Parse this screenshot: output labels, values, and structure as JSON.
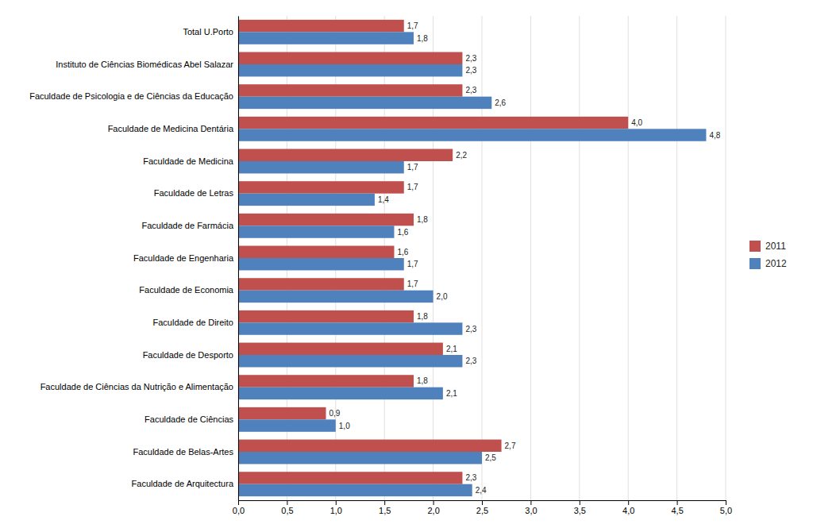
{
  "chart_data": {
    "type": "bar",
    "orientation": "horizontal",
    "categories": [
      "Faculdade de Arquitectura",
      "Faculdade de Belas-Artes",
      "Faculdade de Ciências",
      "Faculdade de Ciências da Nutrição e Alimentação",
      "Faculdade de Desporto",
      "Faculdade de Direito",
      "Faculdade de Economia",
      "Faculdade de Engenharia",
      "Faculdade de Farmácia",
      "Faculdade de Letras",
      "Faculdade de Medicina",
      "Faculdade de Medicina Dentária",
      "Faculdade de Psicologia e de Ciências da Educação",
      "Instituto de Ciências Biomédicas Abel Salazar",
      "Total U.Porto"
    ],
    "series": [
      {
        "name": "2011",
        "color": "#c0504d",
        "values": [
          2.3,
          2.7,
          0.9,
          1.8,
          2.1,
          1.8,
          1.7,
          1.6,
          1.8,
          1.7,
          2.2,
          4.0,
          2.3,
          2.3,
          1.7
        ],
        "value_labels": [
          "2,3",
          "2,7",
          "0,9",
          "1,8",
          "2,1",
          "1,8",
          "1,7",
          "1,6",
          "1,8",
          "1,7",
          "2,2",
          "4,0",
          "2,3",
          "2,3",
          "1,7"
        ]
      },
      {
        "name": "2012",
        "color": "#4f81bd",
        "values": [
          2.4,
          2.5,
          1.0,
          2.1,
          2.3,
          2.3,
          2.0,
          1.7,
          1.6,
          1.4,
          1.7,
          4.8,
          2.6,
          2.3,
          1.8
        ],
        "value_labels": [
          "2,4",
          "2,5",
          "1,0",
          "2,1",
          "2,3",
          "2,3",
          "2,0",
          "1,7",
          "1,6",
          "1,4",
          "1,7",
          "4,8",
          "2,6",
          "2,3",
          "1,8"
        ]
      }
    ],
    "xlim": [
      0,
      5.0
    ],
    "xticks": [
      {
        "value": 0.0,
        "label": "0,0"
      },
      {
        "value": 0.5,
        "label": "0,5"
      },
      {
        "value": 1.0,
        "label": "1,0"
      },
      {
        "value": 1.5,
        "label": "1,5"
      },
      {
        "value": 2.0,
        "label": "2,0"
      },
      {
        "value": 2.5,
        "label": "2,5"
      },
      {
        "value": 3.0,
        "label": "3,0"
      },
      {
        "value": 3.5,
        "label": "3,5"
      },
      {
        "value": 4.0,
        "label": "4,0"
      },
      {
        "value": 4.5,
        "label": "4,5"
      },
      {
        "value": 5.0,
        "label": "5,0"
      }
    ],
    "grid": true,
    "data_labels": true,
    "legend": "right"
  }
}
